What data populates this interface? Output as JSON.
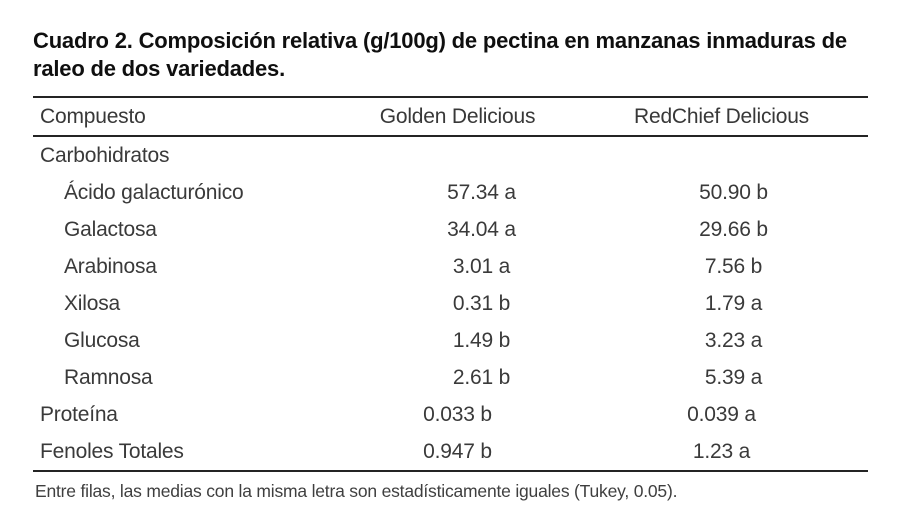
{
  "title": "Cuadro 2. Composición relativa (g/100g) de pectina en manzanas inmaduras de raleo de dos variedades.",
  "table": {
    "columns": {
      "compound": "Compuesto",
      "golden": "Golden Delicious",
      "redchief": "RedChief Delicious"
    },
    "rows": [
      {
        "label": "Carbohidratos",
        "golden": "",
        "redchief": ""
      },
      {
        "label": "Ácido galacturónico",
        "golden": "57.34 a",
        "redchief": "50.90 b"
      },
      {
        "label": "Galactosa",
        "golden": "34.04 a",
        "redchief": "29.66 b"
      },
      {
        "label": "Arabinosa",
        "golden": "3.01 a",
        "redchief": "7.56 b"
      },
      {
        "label": "Xilosa",
        "golden": "0.31 b",
        "redchief": "1.79 a"
      },
      {
        "label": "Glucosa",
        "golden": "1.49 b",
        "redchief": "3.23 a"
      },
      {
        "label": "Ramnosa",
        "golden": "2.61 b",
        "redchief": "5.39 a"
      },
      {
        "label": "Proteína",
        "golden": "0.033 b",
        "redchief": "0.039 a"
      },
      {
        "label": "Fenoles Totales",
        "golden": "0.947 b",
        "redchief": "1.23 a"
      }
    ],
    "footnote": "Entre filas, las medias con la misma letra son estadísticamente iguales (Tukey, 0.05)."
  },
  "colors": {
    "background": "#ffffff",
    "title_text": "#0f0f0f",
    "body_text": "#3a3a3a",
    "rule": "#242424"
  }
}
